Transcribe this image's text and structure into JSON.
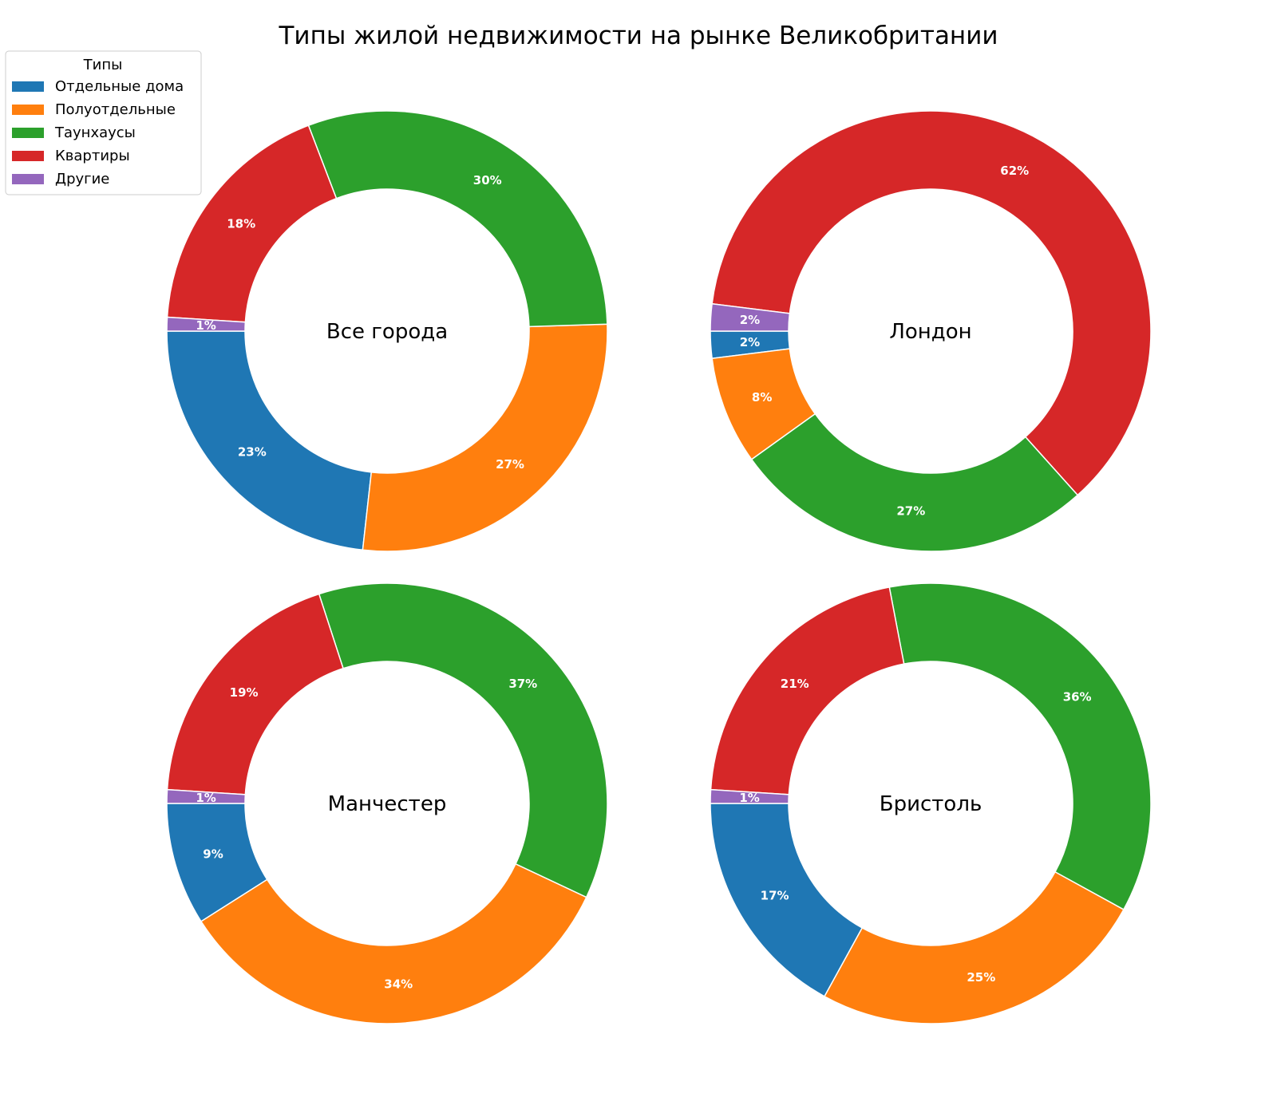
{
  "chart_data": {
    "type": "pie",
    "title": "Типы жилой недвижимости на рынке Великобритании",
    "legend": {
      "title": "Типы",
      "placement": "top-left",
      "entries": [
        "Отдельные дома",
        "Полуотдельные",
        "Таунхаусы",
        "Квартиры",
        "Другие"
      ]
    },
    "colors": [
      "#1f77b4",
      "#ff7f0e",
      "#2ca02c",
      "#d62728",
      "#9467bd"
    ],
    "charts": [
      {
        "label": "Все города",
        "values": [
          23,
          27,
          30,
          18,
          1
        ],
        "labels": [
          "23%",
          "27%",
          "30%",
          "18%",
          "1%"
        ]
      },
      {
        "label": "Лондон",
        "values": [
          2,
          8,
          27,
          62,
          2
        ],
        "labels": [
          "2%",
          "8%",
          "27%",
          "62%",
          "2%"
        ]
      },
      {
        "label": "Манчестер",
        "values": [
          9,
          34,
          37,
          19,
          1
        ],
        "labels": [
          "9%",
          "34%",
          "37%",
          "19%",
          "1%"
        ]
      },
      {
        "label": "Бристоль",
        "values": [
          17,
          25,
          36,
          21,
          1
        ],
        "labels": [
          "17%",
          "25%",
          "36%",
          "21%",
          "1%"
        ]
      }
    ]
  }
}
